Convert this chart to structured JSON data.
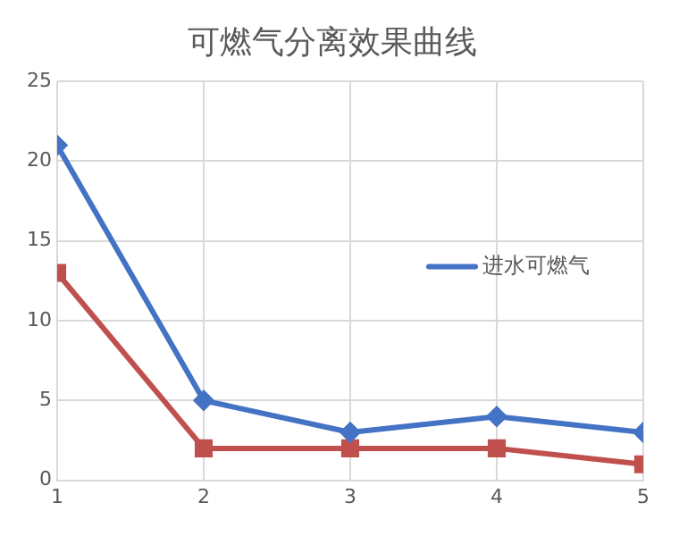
{
  "chart_data": {
    "type": "line",
    "title": "可燃气分离效果曲线",
    "x": [
      1,
      2,
      3,
      4,
      5
    ],
    "series": [
      {
        "name": "进水可燃气",
        "color": "#4472c4",
        "marker": "diamond",
        "values": [
          21,
          5,
          3,
          4,
          3
        ]
      },
      {
        "color": "#c0504d",
        "marker": "square",
        "values": [
          13,
          2,
          2,
          2,
          1
        ]
      }
    ],
    "xlim": [
      1,
      5
    ],
    "xticks": [
      1,
      2,
      3,
      4,
      5
    ],
    "ylim": [
      0,
      25
    ],
    "yticks": [
      0,
      5,
      10,
      15,
      20,
      25
    ],
    "grid": true,
    "legend": "right",
    "line_style": "solid"
  }
}
